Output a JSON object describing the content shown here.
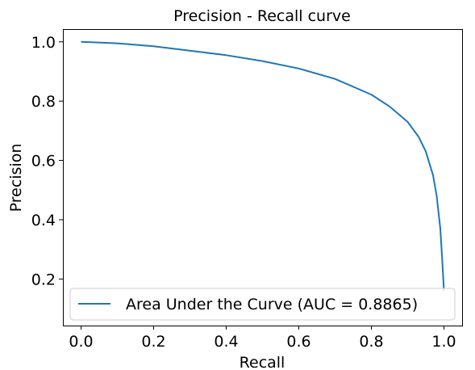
{
  "chart_data": {
    "type": "line",
    "title": "Precision - Recall curve",
    "xlabel": "Recall",
    "ylabel": "Precision",
    "xlim": [
      -0.05,
      1.05
    ],
    "ylim": [
      0.043,
      1.043
    ],
    "xticks": [
      0.0,
      0.2,
      0.4,
      0.6,
      0.8,
      1.0
    ],
    "xtick_labels": [
      "0.0",
      "0.2",
      "0.4",
      "0.6",
      "0.8",
      "1.0"
    ],
    "yticks": [
      0.2,
      0.4,
      0.6,
      0.8,
      1.0
    ],
    "ytick_labels": [
      "0.2",
      "0.4",
      "0.6",
      "0.8",
      "1.0"
    ],
    "grid": false,
    "legend_position": "lower-left",
    "series": [
      {
        "name": "Area Under the Curve (AUC = 0.8865)",
        "color": "#1f77b4",
        "x": [
          0.0,
          0.1,
          0.2,
          0.3,
          0.4,
          0.5,
          0.6,
          0.7,
          0.8,
          0.85,
          0.9,
          0.93,
          0.95,
          0.97,
          0.98,
          0.99,
          0.995,
          1.0
        ],
        "y": [
          1.0,
          0.995,
          0.985,
          0.97,
          0.955,
          0.935,
          0.91,
          0.875,
          0.822,
          0.782,
          0.73,
          0.68,
          0.63,
          0.55,
          0.48,
          0.37,
          0.27,
          0.16
        ]
      }
    ]
  }
}
